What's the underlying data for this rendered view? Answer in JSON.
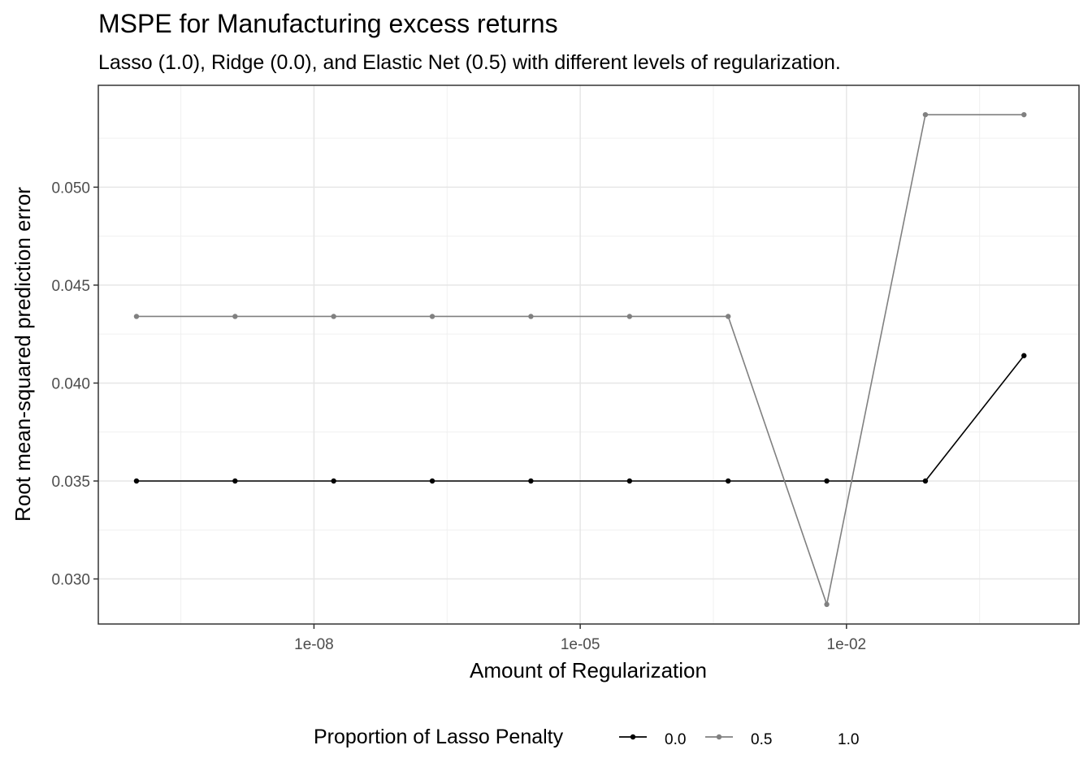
{
  "chart_data": {
    "type": "line",
    "title": "MSPE for Manufacturing excess returns",
    "subtitle": "Lasso (1.0), Ridge (0.0), and Elastic Net (0.5) with different levels of regularization.",
    "xlabel": "Amount of Regularization",
    "ylabel": "Root mean-squared prediction error",
    "x_scale": "log10",
    "xlim_log10": [
      -10.43,
      0.62
    ],
    "ylim": [
      0.0277,
      0.0552
    ],
    "x_ticks": [
      {
        "value": -8,
        "label": "1e-08"
      },
      {
        "value": -5,
        "label": "1e-05"
      },
      {
        "value": -2,
        "label": "1e-02"
      }
    ],
    "y_ticks": [
      {
        "value": 0.03,
        "label": "0.030"
      },
      {
        "value": 0.035,
        "label": "0.035"
      },
      {
        "value": 0.04,
        "label": "0.040"
      },
      {
        "value": 0.045,
        "label": "0.045"
      },
      {
        "value": 0.05,
        "label": "0.050"
      }
    ],
    "x": [
      "1e-10",
      "1e-08.89",
      "1e-07.78",
      "1e-06.67",
      "1e-05.56",
      "1e-04.44",
      "1e-03.33",
      "1e-02.22",
      "1e-01.11",
      "1e+00"
    ],
    "x_log10": [
      -10,
      -8.889,
      -7.778,
      -6.667,
      -5.556,
      -4.444,
      -3.333,
      -2.222,
      -1.111,
      0
    ],
    "series": [
      {
        "name": "0.0",
        "color": "#000000",
        "points": true,
        "values": [
          0.035,
          0.035,
          0.035,
          0.035,
          0.035,
          0.035,
          0.035,
          0.035,
          0.035,
          0.0414
        ]
      },
      {
        "name": "0.5",
        "color": "#808080",
        "points": true,
        "values": [
          0.0434,
          0.0434,
          0.0434,
          0.0434,
          0.0434,
          0.0434,
          0.0434,
          0.0287,
          0.0537,
          0.0537
        ]
      },
      {
        "name": "1.0",
        "color": "#ffffff",
        "points": true,
        "values": [
          0.0434,
          0.0434,
          0.0434,
          0.0434,
          0.0434,
          0.0434,
          0.0434,
          0.0287,
          0.0537,
          0.0537
        ]
      }
    ],
    "grid": true,
    "legend": {
      "title": "Proportion of Lasso Penalty",
      "position": "bottom"
    }
  }
}
